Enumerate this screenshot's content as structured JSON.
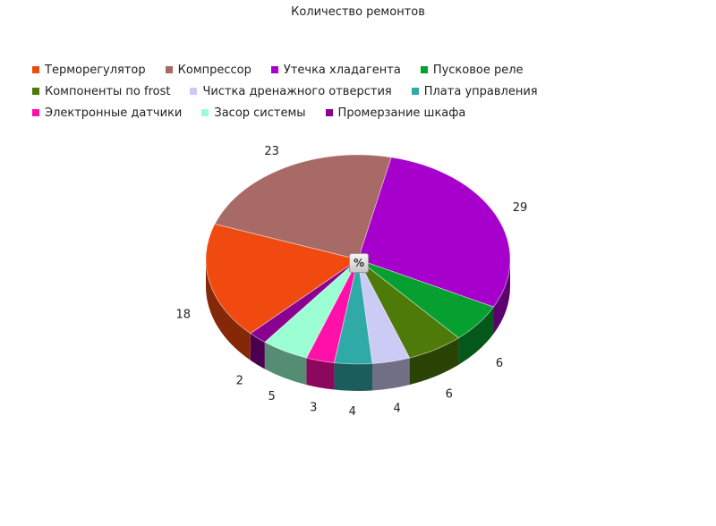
{
  "chart_data": {
    "type": "pie",
    "title": "Количество ремонтов",
    "legend_position": "top",
    "center_label": "%",
    "slices": [
      {
        "label": "Утечка хладагента",
        "value": 29,
        "color": "#a800cc"
      },
      {
        "label": "Пусковое реле",
        "value": 6,
        "color": "#06a030"
      },
      {
        "label": "Компоненты по frost",
        "value": 6,
        "color": "#4e7a0a"
      },
      {
        "label": "Чистка дренажного отверстия",
        "value": 4,
        "color": "#cccbf5"
      },
      {
        "label": "Плата управления",
        "value": 4,
        "color": "#30aaa6"
      },
      {
        "label": "Электронные датчики",
        "value": 3,
        "color": "#ff10a8"
      },
      {
        "label": "Засор системы",
        "value": 5,
        "color": "#9cffd4"
      },
      {
        "label": "Промерзание шкафа",
        "value": 2,
        "color": "#8a0090"
      },
      {
        "label": "Терморегулятор",
        "value": 18,
        "color": "#f04a10"
      },
      {
        "label": "Компрессор",
        "value": 23,
        "color": "#a86a66"
      }
    ],
    "legend_order": [
      "Терморегулятор",
      "Компрессор",
      "Утечка хладагента",
      "Пусковое реле",
      "Компоненты по frost",
      "Чистка дренажного отверстия",
      "Плата управления",
      "Электронные датчики",
      "Засор системы",
      "Промерзание шкафа"
    ]
  }
}
